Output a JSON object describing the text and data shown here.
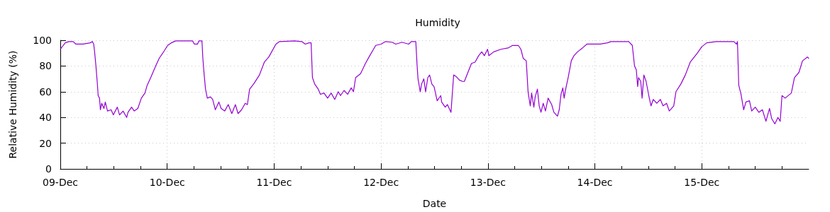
{
  "chart_data": {
    "type": "line",
    "title": "Humidity",
    "xlabel": "Date",
    "ylabel": "Relative Humidity (%)",
    "x": [
      "--12-09T00:00",
      "--12-09T01:06",
      "--12-09T01:54",
      "--12-09T02:54",
      "--12-09T03:30",
      "--12-09T05:06",
      "--12-09T06:42",
      "--12-09T07:12",
      "--12-09T07:30",
      "--12-09T07:42",
      "--12-09T08:00",
      "--12-09T08:18",
      "--12-09T08:30",
      "--12-09T08:48",
      "--12-09T09:00",
      "--12-09T09:18",
      "--12-09T09:48",
      "--12-09T10:06",
      "--12-09T10:36",
      "--12-09T11:24",
      "--12-09T11:54",
      "--12-09T12:48",
      "--12-09T13:18",
      "--12-09T14:06",
      "--12-09T14:54",
      "--12-09T15:12",
      "--12-09T16:00",
      "--12-09T16:36",
      "--12-09T17:24",
      "--12-09T18:12",
      "--12-09T19:00",
      "--12-09T19:30",
      "--12-09T20:18",
      "--12-09T21:24",
      "--12-09T22:12",
      "--12-09T23:00",
      "--12-10T00:06",
      "--12-10T00:54",
      "--12-10T01:54",
      "--12-10T05:42",
      "--12-10T06:06",
      "--12-10T06:48",
      "--12-10T07:06",
      "--12-10T07:48",
      "--12-10T08:00",
      "--12-10T08:18",
      "--12-10T08:36",
      "--12-10T09:00",
      "--12-10T09:42",
      "--12-10T10:12",
      "--12-10T10:48",
      "--12-10T11:36",
      "--12-10T12:06",
      "--12-10T12:54",
      "--12-10T13:42",
      "--12-10T14:30",
      "--12-10T15:18",
      "--12-10T15:54",
      "--12-10T16:42",
      "--12-10T17:30",
      "--12-10T18:00",
      "--12-10T18:30",
      "--12-10T19:24",
      "--12-10T20:42",
      "--12-10T21:48",
      "--12-10T22:48",
      "--12-11T00:24",
      "--12-11T01:12",
      "--12-11T04:36",
      "--12-11T06:12",
      "--12-11T07:00",
      "--12-11T07:48",
      "--12-11T08:18",
      "--12-11T08:36",
      "--12-11T09:06",
      "--12-11T09:54",
      "--12-11T10:24",
      "--12-11T11:12",
      "--12-11T12:00",
      "--12-11T12:48",
      "--12-11T13:36",
      "--12-11T14:24",
      "--12-11T14:54",
      "--12-11T15:42",
      "--12-11T16:30",
      "--12-11T17:18",
      "--12-11T17:48",
      "--12-11T18:18",
      "--12-11T19:24",
      "--12-11T20:30",
      "--12-11T21:18",
      "--12-11T22:18",
      "--12-11T22:48",
      "--12-12T00:00",
      "--12-12T01:00",
      "--12-12T02:30",
      "--12-12T03:18",
      "--12-12T04:42",
      "--12-12T06:12",
      "--12-12T06:48",
      "--12-12T07:48",
      "--12-12T08:06",
      "--12-12T08:18",
      "--12-12T08:48",
      "--12-12T09:06",
      "--12-12T09:36",
      "--12-12T10:00",
      "--12-12T10:30",
      "--12-12T10:54",
      "--12-12T11:24",
      "--12-12T11:54",
      "--12-12T12:36",
      "--12-12T13:24",
      "--12-12T13:36",
      "--12-12T14:24",
      "--12-12T14:54",
      "--12-12T15:42",
      "--12-12T16:18",
      "--12-12T16:48",
      "--12-12T17:36",
      "--12-12T18:18",
      "--12-12T18:42",
      "--12-12T19:30",
      "--12-12T20:18",
      "--12-12T21:06",
      "--12-12T21:54",
      "--12-12T22:36",
      "--12-12T23:12",
      "--12-12T23:54",
      "--12-13T00:12",
      "--12-13T01:18",
      "--12-13T02:54",
      "--12-13T04:30",
      "--12-13T05:30",
      "--12-13T06:48",
      "--12-13T07:24",
      "--12-13T07:54",
      "--12-13T08:36",
      "--12-13T09:00",
      "--12-13T09:30",
      "--12-13T09:48",
      "--12-13T10:18",
      "--12-13T10:36",
      "--12-13T11:06",
      "--12-13T11:30",
      "--12-13T11:54",
      "--12-13T12:24",
      "--12-13T12:54",
      "--12-13T13:30",
      "--12-13T14:18",
      "--12-13T14:48",
      "--12-13T15:36",
      "--12-13T16:00",
      "--12-13T16:24",
      "--12-13T16:48",
      "--12-13T17:06",
      "--12-13T17:30",
      "--12-13T18:00",
      "--12-13T18:42",
      "--12-13T19:18",
      "--12-13T20:06",
      "--12-13T21:12",
      "--12-13T22:12",
      "--12-14T00:00",
      "--12-14T01:12",
      "--12-14T02:48",
      "--12-14T03:36",
      "--12-14T07:36",
      "--12-14T08:24",
      "--12-14T08:54",
      "--12-14T09:18",
      "--12-14T09:36",
      "--12-14T09:48",
      "--12-14T10:18",
      "--12-14T10:36",
      "--12-14T11:00",
      "--12-14T11:30",
      "--12-14T12:06",
      "--12-14T12:36",
      "--12-14T13:06",
      "--12-14T13:54",
      "--12-14T14:42",
      "--12-14T15:18",
      "--12-14T16:06",
      "--12-14T16:42",
      "--12-14T17:42",
      "--12-14T18:12",
      "--12-14T19:18",
      "--12-14T20:18",
      "--12-14T21:24",
      "--12-14T23:00",
      "--12-15T00:00",
      "--12-15T01:06",
      "--12-15T03:12",
      "--12-15T07:12",
      "--12-15T07:48",
      "--12-15T08:00",
      "--12-15T08:18",
      "--12-15T08:48",
      "--12-15T09:24",
      "--12-15T09:54",
      "--12-15T10:42",
      "--12-15T11:12",
      "--12-15T12:00",
      "--12-15T12:48",
      "--12-15T13:36",
      "--12-15T14:24",
      "--12-15T15:12",
      "--12-15T15:42",
      "--12-15T16:24",
      "--12-15T17:06",
      "--12-15T17:36",
      "--12-15T18:00",
      "--12-15T18:42",
      "--12-15T20:06",
      "--12-15T20:48",
      "--12-15T21:48",
      "--12-15T22:36",
      "--12-15T23:42",
      "--12-16T00:00"
    ],
    "series": [
      {
        "color": "#9400d3",
        "values": [
          93,
          98,
          99,
          99,
          97,
          97,
          98,
          99,
          97,
          91,
          80,
          67,
          57,
          55,
          46,
          51,
          47,
          52,
          45,
          46,
          42,
          48,
          42,
          45,
          40,
          44,
          48,
          45,
          47,
          55,
          59,
          65,
          71,
          80,
          86,
          90,
          96,
          98,
          99.5,
          99.5,
          97,
          97,
          99.5,
          99.5,
          86,
          73,
          62,
          55,
          56,
          54,
          46,
          52,
          47,
          45,
          50,
          43,
          50,
          43,
          46,
          51,
          50,
          62,
          66,
          73,
          83,
          87,
          97,
          99,
          99.5,
          99,
          97,
          98,
          98,
          71,
          66,
          62,
          58,
          59,
          55,
          59,
          54,
          60,
          57,
          61,
          58,
          63,
          60,
          71,
          74,
          82,
          87,
          93,
          96,
          97,
          99,
          98.5,
          97,
          98.5,
          97,
          99,
          99,
          80,
          70,
          60,
          66,
          70,
          60,
          71,
          73,
          66,
          64,
          53,
          57,
          52,
          48,
          50,
          44,
          73,
          72,
          69,
          68,
          68,
          75,
          82,
          83,
          88,
          91,
          88,
          93,
          88,
          91,
          93,
          94,
          96,
          96,
          93,
          86,
          84,
          60,
          49,
          59,
          48,
          56,
          62,
          49,
          44,
          51,
          45,
          55,
          50,
          44,
          41,
          46,
          58,
          63,
          55,
          63,
          71,
          84,
          88,
          91,
          94,
          97,
          97,
          97,
          98,
          99,
          99,
          96,
          80,
          77,
          64,
          71,
          68,
          55,
          73,
          68,
          57,
          49,
          54,
          51,
          54,
          49,
          51,
          45,
          49,
          60,
          66,
          73,
          83,
          90,
          95,
          98,
          99,
          99,
          97,
          99,
          65,
          58,
          46,
          52,
          53,
          45,
          48,
          44,
          46,
          37,
          47,
          39,
          35,
          40,
          37,
          57,
          55,
          59,
          71,
          75,
          84,
          87,
          86
        ]
      }
    ],
    "xlim": [
      "--12-09T00:00",
      "--12-16T00:00"
    ],
    "xticks": [
      {
        "value": "--12-09T00:00",
        "label": "09-Dec"
      },
      {
        "value": "--12-09T06:00",
        "label": null
      },
      {
        "value": "--12-09T12:00",
        "label": null
      },
      {
        "value": "--12-09T18:00",
        "label": null
      },
      {
        "value": "--12-10T00:00",
        "label": "10-Dec"
      },
      {
        "value": "--12-10T06:00",
        "label": null
      },
      {
        "value": "--12-10T12:00",
        "label": null
      },
      {
        "value": "--12-10T18:00",
        "label": null
      },
      {
        "value": "--12-11T00:00",
        "label": "11-Dec"
      },
      {
        "value": "--12-11T06:00",
        "label": null
      },
      {
        "value": "--12-11T12:00",
        "label": null
      },
      {
        "value": "--12-11T18:00",
        "label": null
      },
      {
        "value": "--12-12T00:00",
        "label": "12-Dec"
      },
      {
        "value": "--12-12T06:00",
        "label": null
      },
      {
        "value": "--12-12T12:00",
        "label": null
      },
      {
        "value": "--12-12T18:00",
        "label": null
      },
      {
        "value": "--12-13T00:00",
        "label": "13-Dec"
      },
      {
        "value": "--12-13T06:00",
        "label": null
      },
      {
        "value": "--12-13T12:00",
        "label": null
      },
      {
        "value": "--12-13T18:00",
        "label": null
      },
      {
        "value": "--12-14T00:00",
        "label": "14-Dec"
      },
      {
        "value": "--12-14T06:00",
        "label": null
      },
      {
        "value": "--12-14T12:00",
        "label": null
      },
      {
        "value": "--12-14T18:00",
        "label": null
      },
      {
        "value": "--12-15T00:00",
        "label": "15-Dec"
      },
      {
        "value": "--12-15T06:00",
        "label": null
      },
      {
        "value": "--12-15T12:00",
        "label": null
      },
      {
        "value": "--12-15T18:00",
        "label": null
      }
    ],
    "ylim": [
      0,
      100
    ],
    "yticks": [
      0,
      20,
      40,
      60,
      80,
      100
    ],
    "grid": true,
    "marker": "none",
    "line_style": "solid"
  }
}
